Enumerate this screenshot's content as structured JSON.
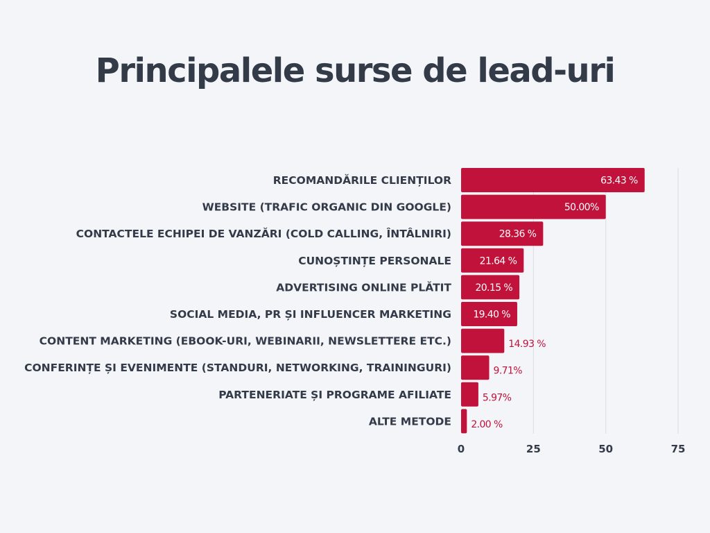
{
  "title": "Principalele surse de lead-uri",
  "colors": {
    "bar": "#c0123a",
    "text": "#333a48",
    "grid": "#d9dbe2",
    "background": "#f4f5f9"
  },
  "chart_data": {
    "type": "bar",
    "orientation": "horizontal",
    "title": "Principalele surse de lead-uri",
    "categories": [
      "RECOMANDĂRILE CLIENȚILOR",
      "WEBSITE (TRAFIC ORGANIC DIN GOOGLE)",
      "CONTACTELE ECHIPEI DE VANZĂRI (COLD CALLING, ÎNTÂLNIRI)",
      "CUNOȘTINȚE PERSONALE",
      "ADVERTISING ONLINE PLĂTIT",
      "SOCIAL MEDIA, PR ȘI INFLUENCER MARKETING",
      "CONTENT MARKETING (EBOOK-URI, WEBINARII, NEWSLETTERE ETC.)",
      "CONFERINȚE ȘI EVENIMENTE (STANDURI, NETWORKING, TRAININGURI)",
      "PARTENERIATE ȘI PROGRAME AFILIATE",
      "ALTE METODE"
    ],
    "values": [
      63.43,
      50.0,
      28.36,
      21.64,
      20.15,
      19.4,
      14.93,
      9.71,
      5.97,
      2.0
    ],
    "value_labels": [
      "63.43 %",
      "50.00%",
      "28.36 %",
      "21.64 %",
      "20.15 %",
      "19.40 %",
      "14.93 %",
      "9.71%",
      "5.97%",
      "2.00 %"
    ],
    "xlim": [
      0,
      75
    ],
    "xticks": [
      "0",
      "25",
      "50",
      "75"
    ],
    "xlabel": "",
    "ylabel": "",
    "grid": true,
    "legend": "none"
  }
}
